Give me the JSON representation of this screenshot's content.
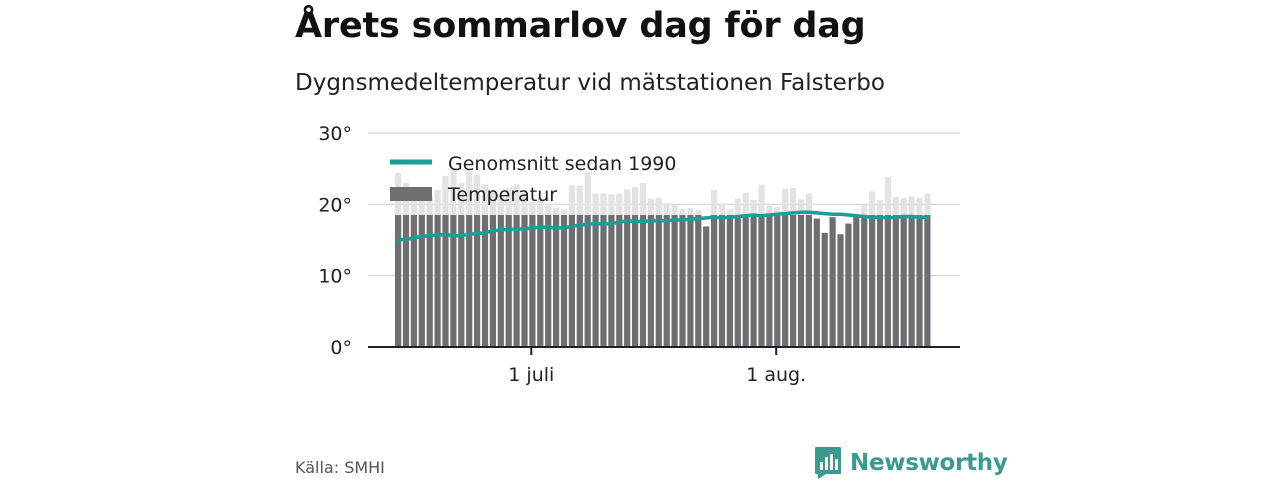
{
  "header": {
    "title": "Årets sommarlov dag för dag",
    "subtitle": "Dygnsmedeltemperatur vid mätstationen Falsterbo"
  },
  "footer": {
    "source": "Källa: SMHI",
    "brand": "Newsworthy"
  },
  "colors": {
    "bar": "#6e6e73",
    "bar_overlap": "#e3e3e3",
    "average_line": "#1a9e96",
    "grid": "#dddddd",
    "axis": "#222222",
    "brand": "#3a9a8f"
  },
  "chart_data": {
    "type": "bar",
    "x_tick_labels": [
      {
        "day": 17,
        "label": "1 juli"
      },
      {
        "day": 48,
        "label": "1 aug."
      }
    ],
    "ylim": [
      0,
      30
    ],
    "y_ticks": [
      {
        "value": 0,
        "label": "0°"
      },
      {
        "value": 10,
        "label": "10°"
      },
      {
        "value": 20,
        "label": "20°"
      },
      {
        "value": 30,
        "label": "30°"
      }
    ],
    "grid": true,
    "legend": {
      "placement": "top-left"
    },
    "series": [
      {
        "name": "Temperatur",
        "type": "bar",
        "values": [
          24.4,
          23.0,
          22.0,
          21.5,
          21.0,
          22.0,
          24.0,
          24.9,
          23.0,
          24.6,
          24.2,
          22.8,
          22.0,
          21.3,
          22.3,
          22.8,
          21.7,
          20.3,
          21.0,
          19.8,
          19.5,
          19.3,
          22.7,
          22.6,
          24.5,
          21.5,
          21.5,
          21.4,
          21.5,
          22.1,
          22.4,
          23.0,
          20.8,
          20.9,
          20.0,
          19.9,
          19.3,
          19.5,
          19.2,
          16.9,
          22.0,
          20.0,
          19.3,
          20.8,
          21.6,
          20.6,
          22.8,
          19.8,
          19.6,
          22.2,
          22.3,
          20.7,
          21.5,
          18.0,
          16.0,
          18.2,
          15.8,
          17.3,
          18.3,
          19.9,
          21.8,
          20.6,
          23.8,
          21.0,
          20.9,
          21.1,
          20.9,
          21.5
        ]
      },
      {
        "name": "Genomsnitt sedan 1990",
        "type": "line",
        "values": [
          15.0,
          15.1,
          15.3,
          15.5,
          15.6,
          15.7,
          15.8,
          15.6,
          15.6,
          15.8,
          15.9,
          16.0,
          16.3,
          16.4,
          16.5,
          16.5,
          16.6,
          16.7,
          16.8,
          16.8,
          16.7,
          16.7,
          16.9,
          17.1,
          17.2,
          17.3,
          17.2,
          17.3,
          17.5,
          17.7,
          17.6,
          17.6,
          17.7,
          17.7,
          17.7,
          17.8,
          17.8,
          17.9,
          18.0,
          18.1,
          18.2,
          18.1,
          18.2,
          18.3,
          18.4,
          18.5,
          18.4,
          18.5,
          18.6,
          18.7,
          18.8,
          18.9,
          18.9,
          18.8,
          18.7,
          18.6,
          18.6,
          18.5,
          18.4,
          18.3,
          18.2,
          18.2,
          18.1,
          18.2,
          18.3,
          18.3,
          18.2,
          18.2
        ],
        "band_level": 18.5
      }
    ]
  }
}
